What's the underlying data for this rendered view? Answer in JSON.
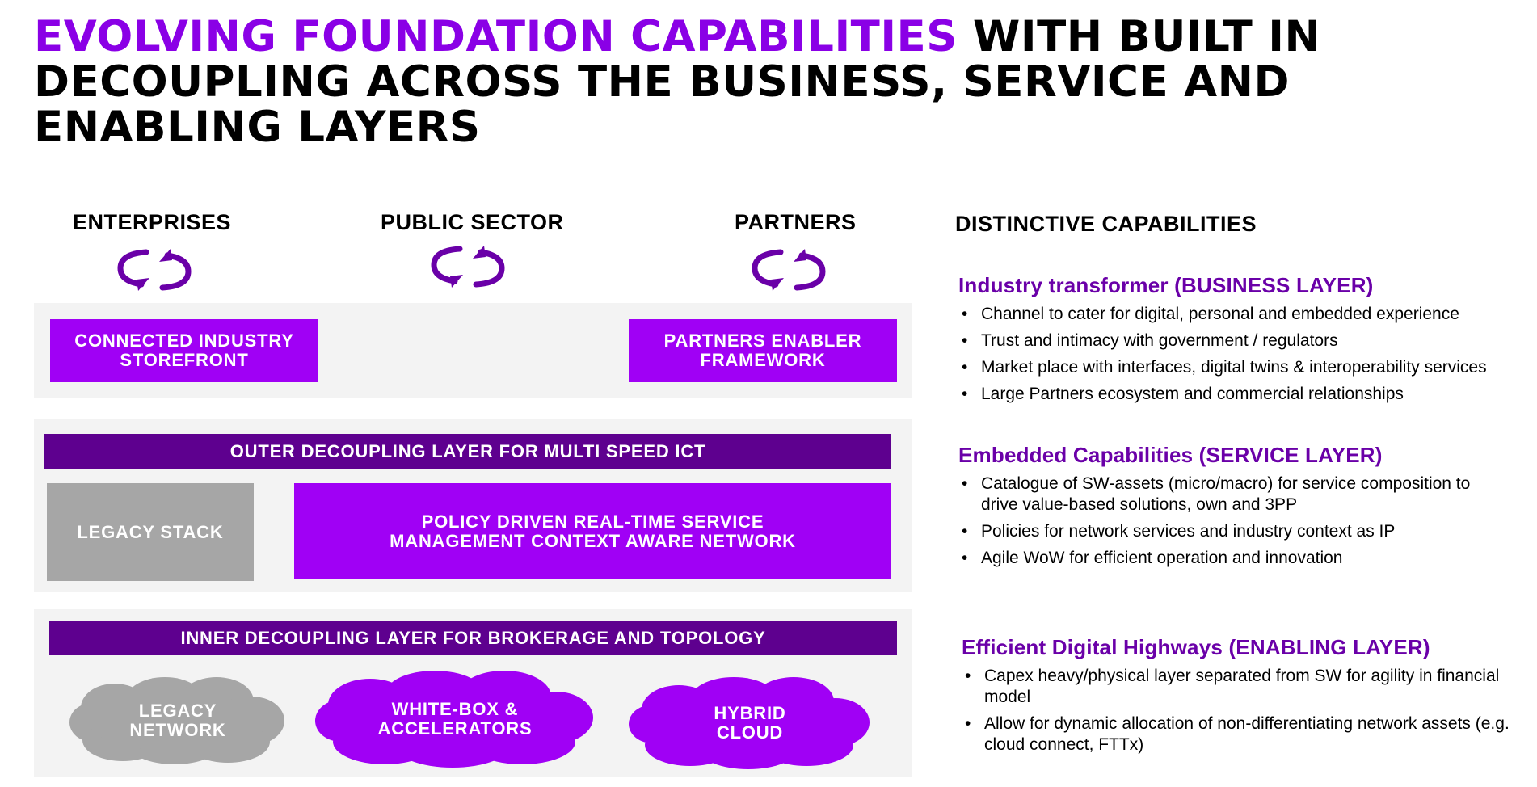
{
  "title": {
    "accent": "EVOLVING FOUNDATION CAPABILITIES",
    "rest": " WITH BUILT IN DECOUPLING ACROSS THE BUSINESS, SERVICE AND ENABLING LAYERS"
  },
  "segments": [
    {
      "label": "ENTERPRISES",
      "icon": "cycle-arrows-icon"
    },
    {
      "label": "PUBLIC SECTOR",
      "icon": "cycle-arrows-icon"
    },
    {
      "label": "PARTNERS",
      "icon": "cycle-arrows-icon"
    }
  ],
  "business_layer": {
    "storefront": "CONNECTED INDUSTRY\nSTOREFRONT",
    "partners": "PARTNERS ENABLER\nFRAMEWORK"
  },
  "service_layer": {
    "header": "OUTER DECOUPLING LAYER FOR MULTI SPEED ICT",
    "legacy": "LEGACY STACK",
    "policy": "POLICY DRIVEN REAL-TIME SERVICE\nMANAGEMENT CONTEXT AWARE NETWORK"
  },
  "enabling_layer": {
    "header": "INNER DECOUPLING LAYER FOR BROKERAGE AND TOPOLOGY",
    "clouds": [
      "LEGACY\nNETWORK",
      "WHITE-BOX &\nACCELERATORS",
      "HYBRID\nCLOUD"
    ]
  },
  "capabilities": {
    "heading": "DISTINCTIVE CAPABILITIES",
    "sections": [
      {
        "title": "Industry transformer (BUSINESS LAYER)",
        "bullets": [
          "Channel to cater for digital, personal and embedded experience",
          "Trust and intimacy with government / regulators",
          "Market place with interfaces, digital twins & interoperability services",
          "Large Partners ecosystem and commercial relationships"
        ]
      },
      {
        "title": "Embedded Capabilities (SERVICE LAYER)",
        "bullets": [
          "Catalogue of SW-assets (micro/macro) for service composition to drive value-based solutions, own and 3PP",
          "Policies for network services and industry context as IP",
          "Agile WoW for efficient operation and innovation"
        ]
      },
      {
        "title": "Efficient Digital Highways (ENABLING LAYER)",
        "bullets": [
          "Capex heavy/physical layer separated from SW for agility in financial model",
          "Allow for dynamic allocation of non-differentiating network assets (e.g. cloud connect, FTTx)"
        ]
      }
    ]
  },
  "colors": {
    "accent": "#8A00E6",
    "box": "#A000F5",
    "dark": "#5E008F",
    "grey": "#A6A6A6",
    "band": "#F3F3F3"
  }
}
